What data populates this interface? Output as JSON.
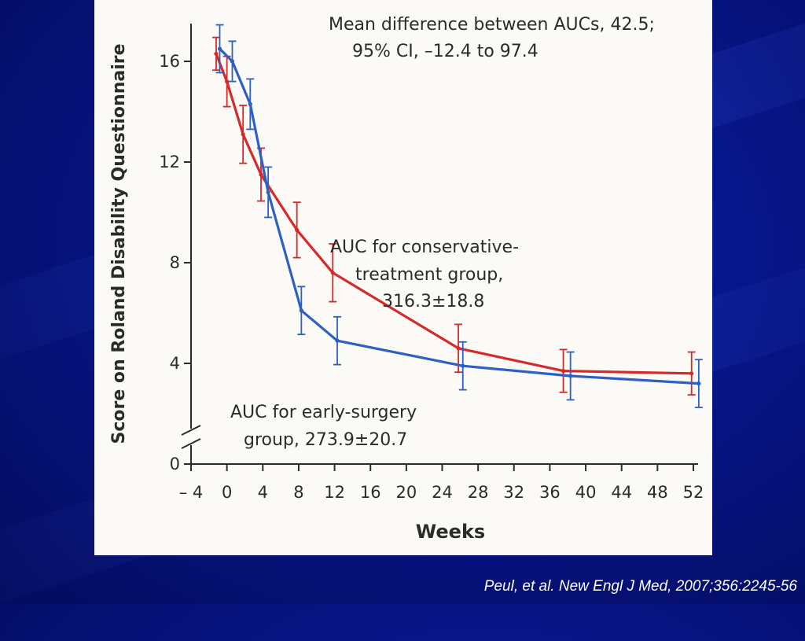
{
  "colors": {
    "background": "#061485",
    "card": "#fbfaf6",
    "axis": "#2b2b2b",
    "conservative": "#d42a2a",
    "surgery": "#2d5fc4",
    "citation": "#ffffff"
  },
  "citation": "Peul, et al.  New Engl J Med,  2007;356:2245-56",
  "chart_data": {
    "type": "line",
    "xlabel": "Weeks",
    "ylabel": "Score on Roland Disability Questionnaire",
    "xlim": [
      -4,
      52
    ],
    "ylim": [
      0,
      17.5
    ],
    "y_axis_break": true,
    "grid": false,
    "x_ticks": [
      -4,
      0,
      4,
      8,
      12,
      16,
      20,
      24,
      28,
      32,
      36,
      40,
      44,
      48,
      52
    ],
    "x_tick_labels": [
      "– 4",
      "0",
      "4",
      "8",
      "12",
      "16",
      "20",
      "24",
      "28",
      "32",
      "36",
      "40",
      "44",
      "48",
      "52"
    ],
    "y_ticks": [
      0,
      4,
      8,
      12,
      16
    ],
    "y_tick_labels": [
      "0",
      "4",
      "8",
      "12",
      "16"
    ],
    "annotations": {
      "difference_line1": "Mean difference between AUCs, 42.5;",
      "difference_line2": "95% CI, –12.4 to 97.4",
      "conservative_line1": "AUC for conservative-",
      "conservative_line2": "treatment group,",
      "conservative_line3": "316.3±18.8",
      "surgery_line1": "AUC for early-surgery",
      "surgery_line2": "group, 273.9±20.7"
    },
    "series": [
      {
        "id": "conservative",
        "color": "#d42a2a",
        "points": [
          {
            "x": -1.2,
            "y": 16.3,
            "err": 0.65
          },
          {
            "x": 0,
            "y": 15.2,
            "err": 1.0
          },
          {
            "x": 1.8,
            "y": 13.1,
            "err": 1.15
          },
          {
            "x": 3.8,
            "y": 11.5,
            "err": 1.05
          },
          {
            "x": 7.8,
            "y": 9.3,
            "err": 1.1
          },
          {
            "x": 11.8,
            "y": 7.6,
            "err": 1.15
          },
          {
            "x": 25.8,
            "y": 4.6,
            "err": 0.95
          },
          {
            "x": 37.5,
            "y": 3.7,
            "err": 0.85
          },
          {
            "x": 51.8,
            "y": 3.6,
            "err": 0.85
          }
        ]
      },
      {
        "id": "surgery",
        "color": "#2d5fc4",
        "points": [
          {
            "x": -0.8,
            "y": 16.5,
            "err": 0.95
          },
          {
            "x": 0.6,
            "y": 16.0,
            "err": 0.8
          },
          {
            "x": 2.6,
            "y": 14.3,
            "err": 1.0
          },
          {
            "x": 4.6,
            "y": 10.8,
            "err": 1.0
          },
          {
            "x": 8.3,
            "y": 6.1,
            "err": 0.95
          },
          {
            "x": 12.3,
            "y": 4.9,
            "err": 0.95
          },
          {
            "x": 26.3,
            "y": 3.9,
            "err": 0.95
          },
          {
            "x": 38.3,
            "y": 3.5,
            "err": 0.95
          },
          {
            "x": 52.6,
            "y": 3.2,
            "err": 0.95
          }
        ]
      }
    ]
  }
}
